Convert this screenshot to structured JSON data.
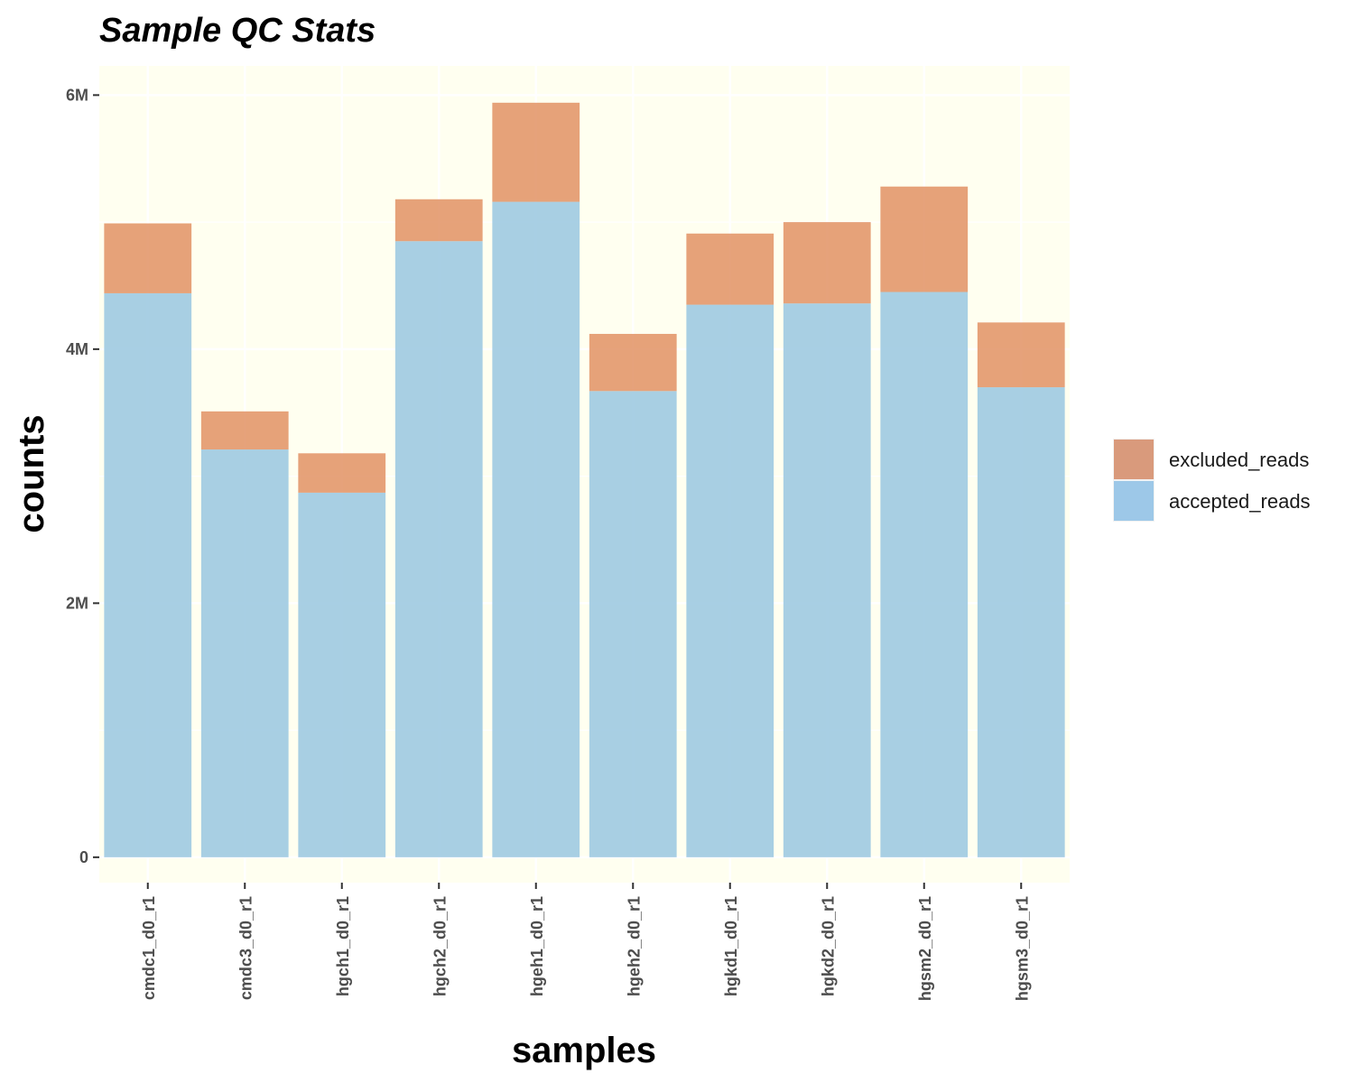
{
  "chart_data": {
    "type": "bar",
    "stacked": true,
    "title": "Sample QC Stats",
    "xlabel": "samples",
    "ylabel": "counts",
    "categories": [
      "cmdc1_d0_r1",
      "cmdc3_d0_r1",
      "hgch1_d0_r1",
      "hgch2_d0_r1",
      "hgeh1_d0_r1",
      "hgeh2_d0_r1",
      "hgkd1_d0_r1",
      "hgkd2_d0_r1",
      "hgsm2_d0_r1",
      "hgsm3_d0_r1"
    ],
    "series": [
      {
        "name": "accepted_reads",
        "color": "#9ecae1",
        "values": [
          4440000,
          3210000,
          2870000,
          4850000,
          5160000,
          3670000,
          4350000,
          4360000,
          4450000,
          3700000
        ]
      },
      {
        "name": "excluded_reads",
        "color": "#e08e5e",
        "values": [
          550000,
          300000,
          310000,
          330000,
          780000,
          450000,
          560000,
          640000,
          830000,
          510000
        ]
      }
    ],
    "ylim": [
      -200000,
      6230000
    ],
    "yticks": [
      0,
      2000000,
      4000000,
      6000000
    ],
    "ytick_labels": [
      "0",
      "2M",
      "4M",
      "6M"
    ],
    "legend": {
      "position": "right",
      "entries": [
        {
          "label": "excluded_reads",
          "color": "#d99a7c"
        },
        {
          "label": "accepted_reads",
          "color": "#9dc8e8"
        }
      ]
    },
    "panel_background": "#fffff0",
    "grid": true
  }
}
